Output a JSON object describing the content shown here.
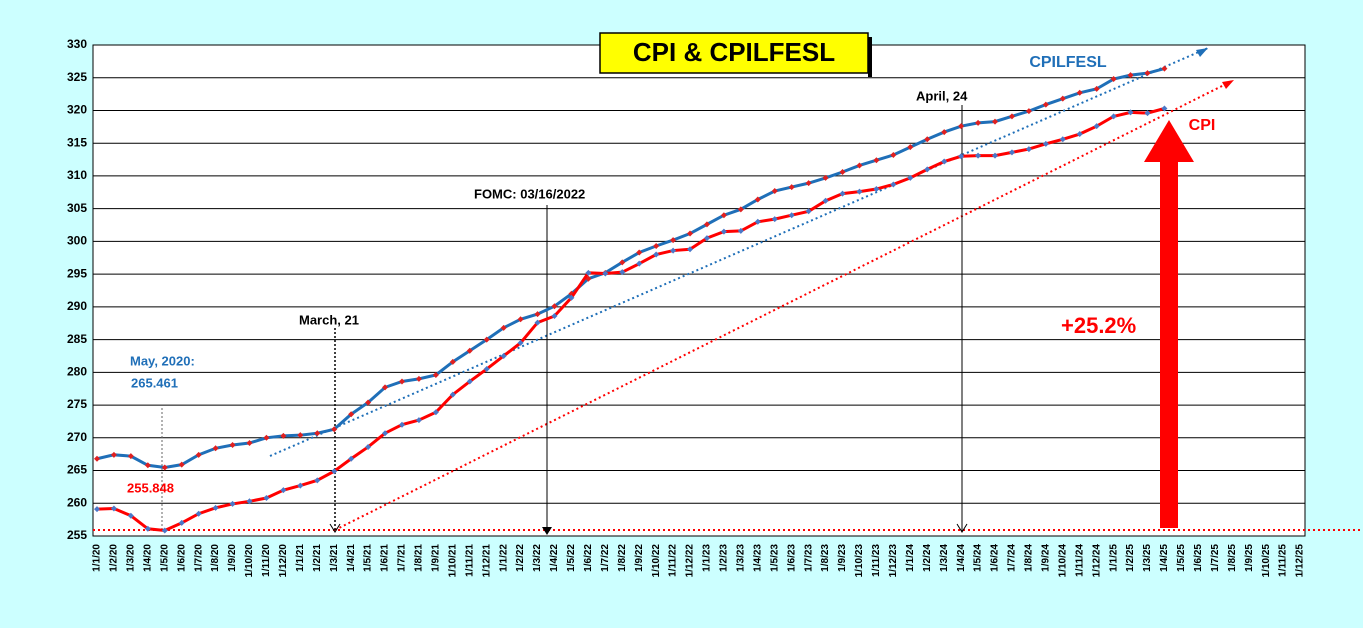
{
  "chart_data": {
    "type": "line",
    "title": "CPI & CPILFESL",
    "categories": [
      "1/1/20",
      "1/2/20",
      "1/3/20",
      "1/4/20",
      "1/5/20",
      "1/6/20",
      "1/7/20",
      "1/8/20",
      "1/9/20",
      "1/10/20",
      "1/11/20",
      "1/12/20",
      "1/1/21",
      "1/2/21",
      "1/3/21",
      "1/4/21",
      "1/5/21",
      "1/6/21",
      "1/7/21",
      "1/8/21",
      "1/9/21",
      "1/10/21",
      "1/11/21",
      "1/12/21",
      "1/1/22",
      "1/2/22",
      "1/3/22",
      "1/4/22",
      "1/5/22",
      "1/6/22",
      "1/7/22",
      "1/8/22",
      "1/9/22",
      "1/10/22",
      "1/11/22",
      "1/12/22",
      "1/1/23",
      "1/2/23",
      "1/3/23",
      "1/4/23",
      "1/5/23",
      "1/6/23",
      "1/7/23",
      "1/8/23",
      "1/9/23",
      "1/10/23",
      "1/11/23",
      "1/12/23",
      "1/1/24",
      "1/2/24",
      "1/3/24",
      "1/4/24",
      "1/5/24",
      "1/6/24",
      "1/7/24",
      "1/8/24",
      "1/9/24",
      "1/10/24",
      "1/11/24",
      "1/12/24",
      "1/1/25",
      "1/2/25",
      "1/3/25",
      "1/4/25",
      "1/5/25",
      "1/6/25",
      "1/7/25",
      "1/8/25",
      "1/9/25",
      "1/10/25",
      "1/11/25",
      "1/12/25"
    ],
    "series": [
      {
        "name": "CPILFESL",
        "color": "#1f6fb8",
        "marker_color": "#e02020",
        "values": [
          266.8,
          267.4,
          267.2,
          265.8,
          265.461,
          265.9,
          267.4,
          268.4,
          268.9,
          269.2,
          270.0,
          270.3,
          270.4,
          270.7,
          271.3,
          273.6,
          275.4,
          277.7,
          278.6,
          279.0,
          279.6,
          281.6,
          283.3,
          285.0,
          286.8,
          288.1,
          288.9,
          290.1,
          292.0,
          294.3,
          295.2,
          296.8,
          298.3,
          299.3,
          300.2,
          301.2,
          302.6,
          304.0,
          304.9,
          306.4,
          307.7,
          308.3,
          308.9,
          309.7,
          310.6,
          311.6,
          312.4,
          313.2,
          314.4,
          315.6,
          316.7,
          317.6,
          318.1,
          318.3,
          319.1,
          319.9,
          320.9,
          321.8,
          322.7,
          323.3,
          324.8,
          325.4,
          325.7,
          326.4,
          null,
          null,
          null,
          null,
          null,
          null,
          null,
          null
        ]
      },
      {
        "name": "CPI",
        "color": "#ff0000",
        "marker_color": "#4a78c8",
        "values": [
          259.1,
          259.2,
          258.1,
          256.1,
          255.848,
          257.0,
          258.4,
          259.3,
          259.9,
          260.3,
          260.8,
          262.0,
          262.7,
          263.5,
          264.9,
          266.8,
          268.6,
          270.7,
          272.0,
          272.7,
          273.9,
          276.6,
          278.6,
          280.5,
          282.5,
          284.5,
          287.6,
          288.6,
          291.4,
          295.2,
          295.1,
          295.3,
          296.6,
          298.0,
          298.6,
          298.8,
          300.5,
          301.5,
          301.6,
          303.0,
          303.4,
          304.0,
          304.6,
          306.2,
          307.3,
          307.6,
          308.0,
          308.7,
          309.7,
          311.0,
          312.2,
          313.0,
          313.1,
          313.1,
          313.6,
          314.1,
          314.9,
          315.6,
          316.4,
          317.6,
          319.1,
          319.7,
          319.6,
          320.3,
          null,
          null,
          null,
          null,
          null,
          null,
          null,
          null
        ]
      }
    ],
    "ylim": [
      255,
      330
    ],
    "yticks": [
      255,
      260,
      265,
      270,
      275,
      280,
      285,
      290,
      295,
      300,
      305,
      310,
      315,
      320,
      325,
      330
    ],
    "grid": true,
    "annotations": {
      "may_label": "May, 2020:",
      "may_core": "265.461",
      "may_cpi": "255.848",
      "march": "March, 21",
      "fomc": "FOMC: 03/16/2022",
      "april": "April, 24",
      "change": "+25.2%",
      "label_core": "CPILFESL",
      "label_cpi": "CPI"
    }
  }
}
